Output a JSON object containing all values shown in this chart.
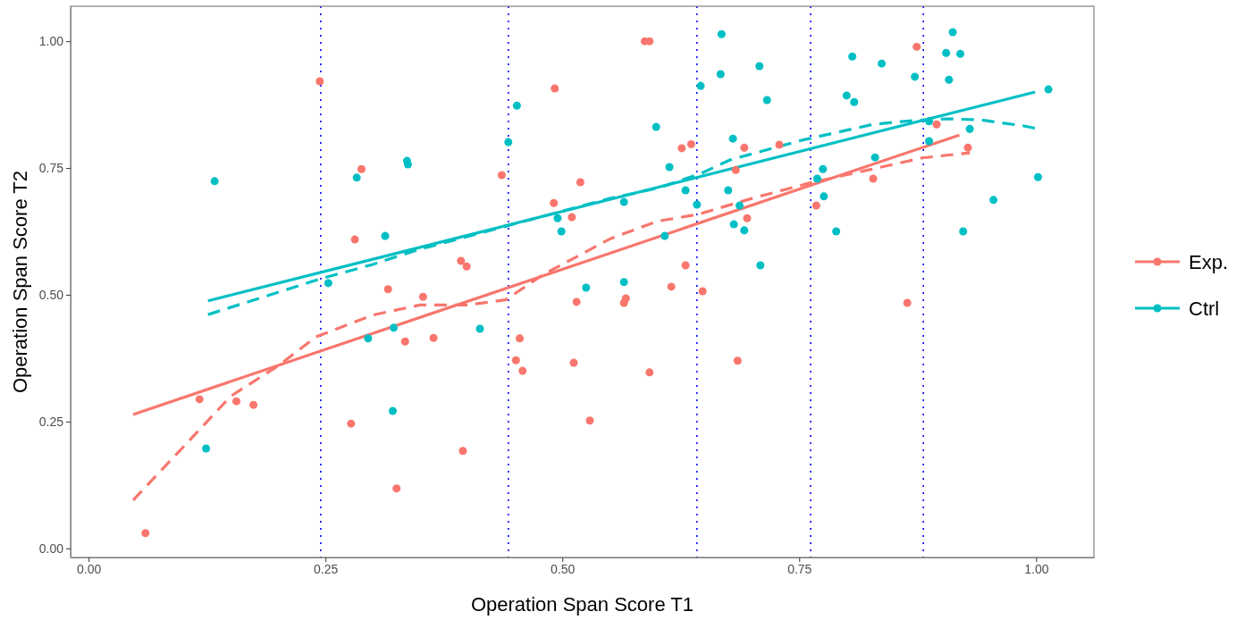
{
  "chart_data": {
    "type": "scatter",
    "xlabel": "Operation Span Score T1",
    "ylabel": "Operation Span Score T2",
    "xlim": [
      -0.019,
      1.061
    ],
    "ylim": [
      -0.018,
      1.069
    ],
    "xticks": [
      {
        "value": 0,
        "label": "0.00"
      },
      {
        "value": 0.25,
        "label": "0.25"
      },
      {
        "value": 0.5,
        "label": "0.50"
      },
      {
        "value": 0.75,
        "label": "0.75"
      },
      {
        "value": 1,
        "label": "1.00"
      }
    ],
    "yticks": [
      {
        "value": 0,
        "label": "0.00"
      },
      {
        "value": 0.25,
        "label": "0.25"
      },
      {
        "value": 0.5,
        "label": "0.50"
      },
      {
        "value": 0.75,
        "label": "0.75"
      },
      {
        "value": 1,
        "label": "1.00"
      }
    ],
    "grid": false,
    "legend": "right",
    "marker": "circle",
    "series": [
      {
        "name": "Exp.",
        "color": "#f8766d",
        "x": [
          0.06,
          0.117,
          0.156,
          0.174,
          0.244,
          0.281,
          0.277,
          0.288,
          0.316,
          0.325,
          0.334,
          0.353,
          0.364,
          0.393,
          0.399,
          0.395,
          0.436,
          0.451,
          0.455,
          0.458,
          0.492,
          0.491,
          0.51,
          0.519,
          0.515,
          0.512,
          0.529,
          0.587,
          0.592,
          0.565,
          0.567,
          0.592,
          0.626,
          0.636,
          0.615,
          0.63,
          0.648,
          0.692,
          0.683,
          0.695,
          0.685,
          0.729,
          0.768,
          0.828,
          0.874,
          0.895,
          0.928,
          0.864
        ],
        "values": [
          0.03,
          0.294,
          0.29,
          0.283,
          0.921,
          0.609,
          0.246,
          0.748,
          0.511,
          0.118,
          0.408,
          0.496,
          0.415,
          0.567,
          0.556,
          0.192,
          0.736,
          0.371,
          0.414,
          0.35,
          0.907,
          0.681,
          0.653,
          0.722,
          0.486,
          0.366,
          0.252,
          1.0,
          1.0,
          0.484,
          0.493,
          0.347,
          0.789,
          0.797,
          0.516,
          0.558,
          0.507,
          0.79,
          0.746,
          0.651,
          0.37,
          0.796,
          0.676,
          0.729,
          0.989,
          0.836,
          0.79,
          0.484
        ]
      },
      {
        "name": "Ctrl",
        "color": "#00bfc4",
        "x": [
          0.133,
          0.124,
          0.283,
          0.313,
          0.336,
          0.337,
          0.253,
          0.295,
          0.322,
          0.321,
          0.413,
          0.443,
          0.452,
          0.495,
          0.499,
          0.525,
          0.565,
          0.565,
          0.599,
          0.608,
          0.613,
          0.63,
          0.642,
          0.646,
          0.667,
          0.668,
          0.675,
          0.68,
          0.681,
          0.692,
          0.709,
          0.708,
          0.716,
          0.687,
          0.806,
          0.8,
          0.808,
          0.837,
          0.775,
          0.769,
          0.776,
          0.789,
          0.83,
          0.872,
          0.887,
          0.887,
          0.905,
          0.912,
          0.92,
          0.908,
          0.93,
          0.923,
          0.955,
          1.002,
          1.013
        ],
        "values": [
          0.724,
          0.197,
          0.731,
          0.616,
          0.764,
          0.757,
          0.523,
          0.414,
          0.435,
          0.271,
          0.433,
          0.801,
          0.873,
          0.651,
          0.625,
          0.514,
          0.683,
          0.525,
          0.831,
          0.616,
          0.752,
          0.706,
          0.678,
          0.912,
          0.935,
          1.014,
          0.706,
          0.808,
          0.639,
          0.627,
          0.558,
          0.951,
          0.884,
          0.676,
          0.97,
          0.893,
          0.88,
          0.956,
          0.748,
          0.729,
          0.694,
          0.625,
          0.771,
          0.93,
          0.842,
          0.803,
          0.977,
          1.018,
          0.975,
          0.924,
          0.827,
          0.625,
          0.687,
          0.732,
          0.905
        ]
      },
      {
        "type": "line",
        "marker": "none",
        "color": "#f8766d",
        "line_style": "solid",
        "x": [
          0.047,
          0.919
        ],
        "values": [
          0.264,
          0.815
        ]
      },
      {
        "type": "line",
        "marker": "none",
        "color": "#00bfc4",
        "line_style": "solid",
        "x": [
          0.126,
          0.999
        ],
        "values": [
          0.488,
          0.9
        ]
      },
      {
        "type": "line",
        "marker": "none",
        "color": "#f8766d",
        "line_style": "dashed",
        "x": [
          0.047,
          0.1,
          0.15,
          0.2,
          0.24,
          0.3,
          0.35,
          0.4,
          0.44,
          0.48,
          0.55,
          0.6,
          0.642,
          0.7,
          0.76,
          0.82,
          0.88,
          0.93
        ],
        "values": [
          0.095,
          0.2,
          0.3,
          0.36,
          0.417,
          0.46,
          0.48,
          0.48,
          0.49,
          0.54,
          0.61,
          0.645,
          0.658,
          0.69,
          0.72,
          0.745,
          0.77,
          0.78
        ]
      },
      {
        "type": "line",
        "marker": "none",
        "color": "#00bfc4",
        "line_style": "dashed",
        "x": [
          0.126,
          0.242,
          0.3,
          0.35,
          0.4,
          0.44,
          0.5,
          0.55,
          0.6,
          0.646,
          0.677,
          0.753,
          0.828,
          0.866,
          0.907,
          0.941,
          0.987,
          1.0
        ],
        "values": [
          0.461,
          0.53,
          0.56,
          0.59,
          0.615,
          0.635,
          0.665,
          0.69,
          0.71,
          0.739,
          0.766,
          0.805,
          0.836,
          0.843,
          0.847,
          0.845,
          0.833,
          0.828
        ]
      }
    ],
    "ref_lines": [
      {
        "axis": "x",
        "value": 0.245,
        "color": "#0000ff",
        "line_style": "dotted"
      },
      {
        "axis": "x",
        "value": 0.443,
        "color": "#0000ff",
        "line_style": "dotted"
      },
      {
        "axis": "x",
        "value": 0.642,
        "color": "#0000ff",
        "line_style": "dotted"
      },
      {
        "axis": "x",
        "value": 0.762,
        "color": "#0000ff",
        "line_style": "dotted"
      },
      {
        "axis": "x",
        "value": 0.881,
        "color": "#0000ff",
        "line_style": "dotted"
      }
    ]
  }
}
